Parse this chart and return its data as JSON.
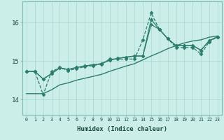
{
  "xlabel": "Humidex (Indice chaleur)",
  "background_color": "#cceee8",
  "grid_color": "#b0ddd8",
  "line_color": "#2d7d6e",
  "x_ticks": [
    0,
    1,
    2,
    3,
    4,
    5,
    6,
    7,
    8,
    9,
    10,
    11,
    12,
    13,
    14,
    15,
    16,
    17,
    18,
    19,
    20,
    21,
    22,
    23
  ],
  "y_ticks": [
    14,
    15,
    16
  ],
  "ylim": [
    13.6,
    16.55
  ],
  "xlim": [
    -0.5,
    23.5
  ],
  "series": [
    {
      "y": [
        14.73,
        14.73,
        14.12,
        14.72,
        14.83,
        14.75,
        14.8,
        14.85,
        14.88,
        14.92,
        15.05,
        15.05,
        15.05,
        15.05,
        15.55,
        16.25,
        15.82,
        15.58,
        15.35,
        15.35,
        15.35,
        15.18,
        15.5,
        15.63
      ],
      "linestyle": "--",
      "marker": "D",
      "markersize": 2.5,
      "linewidth": 0.9
    },
    {
      "y": [
        14.73,
        14.73,
        14.53,
        14.67,
        14.82,
        14.78,
        14.83,
        14.87,
        14.9,
        14.93,
        15.02,
        15.07,
        15.1,
        15.13,
        15.13,
        16.08,
        15.82,
        15.58,
        15.4,
        15.4,
        15.4,
        15.28,
        15.53,
        15.63
      ],
      "linestyle": "-",
      "marker": "D",
      "markersize": 2.5,
      "linewidth": 0.9
    },
    {
      "y": [
        14.73,
        14.73,
        14.53,
        14.67,
        14.82,
        14.78,
        14.83,
        14.87,
        14.9,
        14.93,
        15.02,
        15.07,
        15.1,
        15.13,
        15.13,
        15.95,
        15.82,
        15.58,
        15.4,
        15.4,
        15.4,
        15.28,
        15.53,
        15.63
      ],
      "linestyle": "-",
      "marker": "D",
      "markersize": 2.0,
      "linewidth": 0.9
    },
    {
      "y": [
        14.15,
        14.15,
        14.15,
        14.25,
        14.38,
        14.43,
        14.5,
        14.55,
        14.6,
        14.65,
        14.73,
        14.8,
        14.87,
        14.93,
        15.03,
        15.13,
        15.22,
        15.32,
        15.4,
        15.47,
        15.52,
        15.55,
        15.62,
        15.65
      ],
      "linestyle": "-",
      "marker": null,
      "markersize": 0,
      "linewidth": 1.0
    }
  ]
}
